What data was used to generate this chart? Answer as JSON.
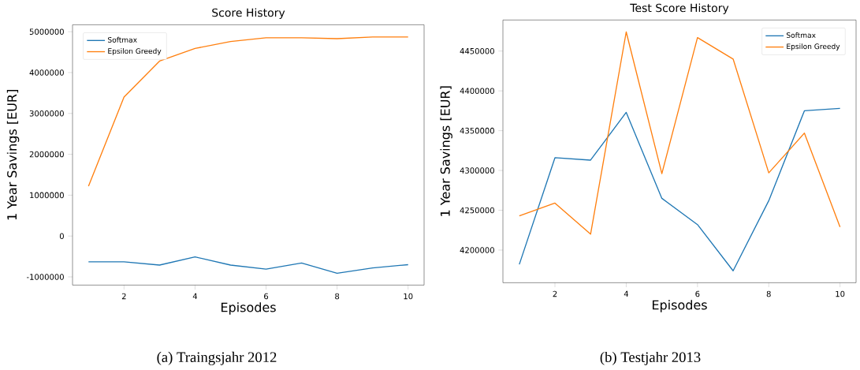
{
  "chart_data": [
    {
      "type": "line",
      "title": "Score History",
      "xlabel": "Episodes",
      "ylabel": "1 Year Savings [EUR]",
      "x": [
        1,
        2,
        3,
        4,
        5,
        6,
        7,
        8,
        9,
        10
      ],
      "series": [
        {
          "name": "Softmax",
          "color": "#1f77b4",
          "values": [
            -630000,
            -630000,
            -710000,
            -510000,
            -710000,
            -810000,
            -660000,
            -910000,
            -780000,
            -700000
          ]
        },
        {
          "name": "Epsilon Greedy",
          "color": "#ff7f0e",
          "values": [
            1220000,
            3400000,
            4280000,
            4590000,
            4760000,
            4850000,
            4850000,
            4830000,
            4870000,
            4870000
          ]
        }
      ],
      "xlim": [
        0.55,
        10.45
      ],
      "ylim": [
        -1200000,
        5170000
      ],
      "xticks": [
        2,
        4,
        6,
        8,
        10
      ],
      "yticks": [
        -1000000,
        0,
        1000000,
        2000000,
        3000000,
        4000000,
        5000000
      ],
      "legend": "top left",
      "annotations": [
        "(a) Traingsjahr 2012"
      ]
    },
    {
      "type": "line",
      "title": "Test Score History",
      "xlabel": "Episodes",
      "ylabel": "1 Year Savings [EUR]",
      "x": [
        1,
        2,
        3,
        4,
        5,
        6,
        7,
        8,
        9,
        10
      ],
      "series": [
        {
          "name": "Softmax",
          "color": "#1f77b4",
          "values": [
            4182000,
            4316000,
            4313000,
            4373000,
            4265000,
            4232000,
            4174000,
            4262000,
            4375000,
            4378000
          ]
        },
        {
          "name": "Epsilon Greedy",
          "color": "#ff7f0e",
          "values": [
            4243000,
            4259000,
            4220000,
            4474000,
            4296000,
            4467000,
            4440000,
            4297000,
            4347000,
            4229000
          ]
        }
      ],
      "xlim": [
        0.54,
        10.45
      ],
      "ylim": [
        4159000,
        4489000
      ],
      "xticks": [
        2,
        4,
        6,
        8,
        10
      ],
      "yticks": [
        4200000,
        4250000,
        4300000,
        4350000,
        4400000,
        4450000
      ],
      "legend": "top right",
      "annotations": [
        "(b) Testjahr 2013"
      ]
    }
  ]
}
